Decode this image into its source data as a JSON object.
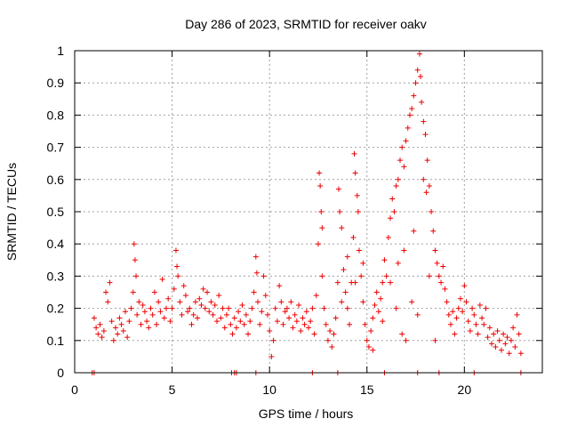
{
  "chart_data": {
    "type": "scatter",
    "title": "Day 286 of 2023, SRMTID for receiver oakv",
    "xlabel": "GPS time / hours",
    "ylabel": "SRMTID / TECUs",
    "xlim": [
      0,
      24
    ],
    "ylim": [
      0,
      1
    ],
    "grid": true,
    "marker": "plus",
    "colors": {
      "points": "#ee0000",
      "grid": "#a0a0a0",
      "axis": "#000000"
    },
    "x_ticks": [
      {
        "value": 0,
        "label": "0"
      },
      {
        "value": 5,
        "label": "5"
      },
      {
        "value": 10,
        "label": "10"
      },
      {
        "value": 15,
        "label": "15"
      },
      {
        "value": 20,
        "label": "20"
      }
    ],
    "y_ticks": [
      {
        "value": 0,
        "label": "0"
      },
      {
        "value": 0.1,
        "label": "0.1"
      },
      {
        "value": 0.2,
        "label": "0.2"
      },
      {
        "value": 0.3,
        "label": "0.3"
      },
      {
        "value": 0.4,
        "label": "0.4"
      },
      {
        "value": 0.5,
        "label": "0.5"
      },
      {
        "value": 0.6,
        "label": "0.6"
      },
      {
        "value": 0.7,
        "label": "0.7"
      },
      {
        "value": 0.8,
        "label": "0.8"
      },
      {
        "value": 0.9,
        "label": "0.9"
      },
      {
        "value": 1,
        "label": "1"
      }
    ],
    "series": [
      {
        "name": "SRMTID",
        "points": [
          [
            1.0,
            0.17
          ],
          [
            1.1,
            0.14
          ],
          [
            1.2,
            0.12
          ],
          [
            1.3,
            0.15
          ],
          [
            1.4,
            0.11
          ],
          [
            1.5,
            0.13
          ],
          [
            1.6,
            0.25
          ],
          [
            1.7,
            0.22
          ],
          [
            1.8,
            0.28
          ],
          [
            1.9,
            0.16
          ],
          [
            2.0,
            0.1
          ],
          [
            2.1,
            0.14
          ],
          [
            2.2,
            0.12
          ],
          [
            2.3,
            0.17
          ],
          [
            2.4,
            0.15
          ],
          [
            2.5,
            0.13
          ],
          [
            2.6,
            0.19
          ],
          [
            2.7,
            0.11
          ],
          [
            2.8,
            0.16
          ],
          [
            2.9,
            0.2
          ],
          [
            3.0,
            0.25
          ],
          [
            3.05,
            0.4
          ],
          [
            3.1,
            0.35
          ],
          [
            3.15,
            0.3
          ],
          [
            3.2,
            0.18
          ],
          [
            3.3,
            0.22
          ],
          [
            3.4,
            0.15
          ],
          [
            3.5,
            0.21
          ],
          [
            3.6,
            0.19
          ],
          [
            3.7,
            0.16
          ],
          [
            3.8,
            0.14
          ],
          [
            3.9,
            0.2
          ],
          [
            4.0,
            0.18
          ],
          [
            4.1,
            0.25
          ],
          [
            4.2,
            0.15
          ],
          [
            4.3,
            0.22
          ],
          [
            4.4,
            0.19
          ],
          [
            4.5,
            0.29
          ],
          [
            4.6,
            0.17
          ],
          [
            4.7,
            0.2
          ],
          [
            4.8,
            0.23
          ],
          [
            4.9,
            0.16
          ],
          [
            5.0,
            0.2
          ],
          [
            5.1,
            0.26
          ],
          [
            5.2,
            0.38
          ],
          [
            5.25,
            0.33
          ],
          [
            5.3,
            0.3
          ],
          [
            5.4,
            0.22
          ],
          [
            5.5,
            0.18
          ],
          [
            5.6,
            0.27
          ],
          [
            5.7,
            0.24
          ],
          [
            5.8,
            0.19
          ],
          [
            5.9,
            0.2
          ],
          [
            6.0,
            0.15
          ],
          [
            6.1,
            0.18
          ],
          [
            6.2,
            0.22
          ],
          [
            6.3,
            0.17
          ],
          [
            6.4,
            0.23
          ],
          [
            6.5,
            0.21
          ],
          [
            6.6,
            0.26
          ],
          [
            6.7,
            0.2
          ],
          [
            6.8,
            0.25
          ],
          [
            6.9,
            0.19
          ],
          [
            7.0,
            0.22
          ],
          [
            7.1,
            0.18
          ],
          [
            7.2,
            0.21
          ],
          [
            7.3,
            0.16
          ],
          [
            7.4,
            0.24
          ],
          [
            7.5,
            0.17
          ],
          [
            7.6,
            0.2
          ],
          [
            7.7,
            0.14
          ],
          [
            7.8,
            0.18
          ],
          [
            7.9,
            0.2
          ],
          [
            8.0,
            0.15
          ],
          [
            8.1,
            0.12
          ],
          [
            8.2,
            0.17
          ],
          [
            8.3,
            0.14
          ],
          [
            8.4,
            0.19
          ],
          [
            8.5,
            0.16
          ],
          [
            8.6,
            0.21
          ],
          [
            8.7,
            0.15
          ],
          [
            8.8,
            0.18
          ],
          [
            8.9,
            0.12
          ],
          [
            9.0,
            0.16
          ],
          [
            9.1,
            0.2
          ],
          [
            9.2,
            0.25
          ],
          [
            9.3,
            0.36
          ],
          [
            9.35,
            0.31
          ],
          [
            9.4,
            0.22
          ],
          [
            9.5,
            0.15
          ],
          [
            9.6,
            0.19
          ],
          [
            9.7,
            0.3
          ],
          [
            9.8,
            0.24
          ],
          [
            9.9,
            0.18
          ],
          [
            10.0,
            0.13
          ],
          [
            10.1,
            0.05
          ],
          [
            10.2,
            0.1
          ],
          [
            10.3,
            0.2
          ],
          [
            10.4,
            0.16
          ],
          [
            10.5,
            0.27
          ],
          [
            10.6,
            0.22
          ],
          [
            10.7,
            0.15
          ],
          [
            10.8,
            0.19
          ],
          [
            10.9,
            0.2
          ],
          [
            11.0,
            0.17
          ],
          [
            11.1,
            0.22
          ],
          [
            11.2,
            0.14
          ],
          [
            11.3,
            0.18
          ],
          [
            11.4,
            0.16
          ],
          [
            11.5,
            0.21
          ],
          [
            11.6,
            0.13
          ],
          [
            11.7,
            0.17
          ],
          [
            11.8,
            0.15
          ],
          [
            11.9,
            0.19
          ],
          [
            12.0,
            0.14
          ],
          [
            12.1,
            0.16
          ],
          [
            12.2,
            0.2
          ],
          [
            12.3,
            0.12
          ],
          [
            12.4,
            0.24
          ],
          [
            12.5,
            0.4
          ],
          [
            12.55,
            0.62
          ],
          [
            12.6,
            0.58
          ],
          [
            12.65,
            0.5
          ],
          [
            12.7,
            0.45
          ],
          [
            12.8,
            0.2
          ],
          [
            12.9,
            0.15
          ],
          [
            13.0,
            0.1
          ],
          [
            13.1,
            0.13
          ],
          [
            13.2,
            0.08
          ],
          [
            13.3,
            0.12
          ],
          [
            13.4,
            0.17
          ],
          [
            13.5,
            0.28
          ],
          [
            13.55,
            0.57
          ],
          [
            13.6,
            0.5
          ],
          [
            13.7,
            0.45
          ],
          [
            13.8,
            0.32
          ],
          [
            13.9,
            0.25
          ],
          [
            14.0,
            0.2
          ],
          [
            14.1,
            0.15
          ],
          [
            14.2,
            0.28
          ],
          [
            14.3,
            0.42
          ],
          [
            14.35,
            0.68
          ],
          [
            14.4,
            0.62
          ],
          [
            14.5,
            0.55
          ],
          [
            14.55,
            0.5
          ],
          [
            14.6,
            0.38
          ],
          [
            14.7,
            0.3
          ],
          [
            14.8,
            0.22
          ],
          [
            14.9,
            0.15
          ],
          [
            15.0,
            0.1
          ],
          [
            15.1,
            0.08
          ],
          [
            15.2,
            0.13
          ],
          [
            15.3,
            0.17
          ],
          [
            15.4,
            0.21
          ],
          [
            15.5,
            0.25
          ],
          [
            15.6,
            0.19
          ],
          [
            15.7,
            0.23
          ],
          [
            15.8,
            0.28
          ],
          [
            15.9,
            0.35
          ],
          [
            16.0,
            0.3
          ],
          [
            16.1,
            0.42
          ],
          [
            16.2,
            0.48
          ],
          [
            16.3,
            0.54
          ],
          [
            16.4,
            0.5
          ],
          [
            16.5,
            0.58
          ],
          [
            16.6,
            0.6
          ],
          [
            16.7,
            0.66
          ],
          [
            16.8,
            0.7
          ],
          [
            16.9,
            0.64
          ],
          [
            17.0,
            0.72
          ],
          [
            17.1,
            0.76
          ],
          [
            17.2,
            0.8
          ],
          [
            17.3,
            0.82
          ],
          [
            17.4,
            0.86
          ],
          [
            17.5,
            0.9
          ],
          [
            17.6,
            0.94
          ],
          [
            17.7,
            0.99
          ],
          [
            17.75,
            0.92
          ],
          [
            17.8,
            0.84
          ],
          [
            17.9,
            0.78
          ],
          [
            18.0,
            0.74
          ],
          [
            18.1,
            0.66
          ],
          [
            18.2,
            0.58
          ],
          [
            18.3,
            0.5
          ],
          [
            18.4,
            0.44
          ],
          [
            18.5,
            0.38
          ],
          [
            18.6,
            0.34
          ],
          [
            18.7,
            0.3
          ],
          [
            18.8,
            0.28
          ],
          [
            18.9,
            0.33
          ],
          [
            19.0,
            0.26
          ],
          [
            19.1,
            0.22
          ],
          [
            19.2,
            0.18
          ],
          [
            19.3,
            0.15
          ],
          [
            19.4,
            0.19
          ],
          [
            19.5,
            0.12
          ],
          [
            19.6,
            0.17
          ],
          [
            19.7,
            0.2
          ],
          [
            19.8,
            0.23
          ],
          [
            19.9,
            0.19
          ],
          [
            20.0,
            0.27
          ],
          [
            20.1,
            0.22
          ],
          [
            20.2,
            0.16
          ],
          [
            20.3,
            0.13
          ],
          [
            20.4,
            0.2
          ],
          [
            20.5,
            0.18
          ],
          [
            20.6,
            0.15
          ],
          [
            20.7,
            0.12
          ],
          [
            20.8,
            0.21
          ],
          [
            20.9,
            0.17
          ],
          [
            21.0,
            0.15
          ],
          [
            21.1,
            0.2
          ],
          [
            21.2,
            0.11
          ],
          [
            21.3,
            0.14
          ],
          [
            21.4,
            0.09
          ],
          [
            21.5,
            0.12
          ],
          [
            21.6,
            0.08
          ],
          [
            21.7,
            0.13
          ],
          [
            21.8,
            0.1
          ],
          [
            21.9,
            0.07
          ],
          [
            22.0,
            0.12
          ],
          [
            22.1,
            0.09
          ],
          [
            22.2,
            0.11
          ],
          [
            22.3,
            0.06
          ],
          [
            22.4,
            0.1
          ],
          [
            22.5,
            0.14
          ],
          [
            22.6,
            0.08
          ],
          [
            22.7,
            0.18
          ],
          [
            22.8,
            0.12
          ],
          [
            22.9,
            0.06
          ],
          [
            16.2,
            0.28
          ],
          [
            16.5,
            0.2
          ],
          [
            16.8,
            0.12
          ],
          [
            17.0,
            0.1
          ],
          [
            17.3,
            0.22
          ],
          [
            17.6,
            0.18
          ],
          [
            18.2,
            0.3
          ],
          [
            18.5,
            0.1
          ],
          [
            16.9,
            0.38
          ],
          [
            17.4,
            0.44
          ],
          [
            18.05,
            0.56
          ],
          [
            17.9,
            0.6
          ],
          [
            16.6,
            0.34
          ],
          [
            15.8,
            0.16
          ],
          [
            14.0,
            0.36
          ],
          [
            13.7,
            0.22
          ],
          [
            12.7,
            0.3
          ],
          [
            14.4,
            0.28
          ],
          [
            14.8,
            0.34
          ],
          [
            15.3,
            0.07
          ]
        ]
      },
      {
        "name": "baseline markers",
        "points": [
          [
            0.9,
            0
          ],
          [
            1.0,
            0
          ],
          [
            8.05,
            0
          ],
          [
            8.2,
            0
          ],
          [
            8.3,
            0
          ],
          [
            9.3,
            0
          ],
          [
            12.2,
            0
          ],
          [
            13.5,
            0
          ],
          [
            15.9,
            0
          ],
          [
            17.6,
            0
          ],
          [
            18.7,
            0
          ],
          [
            20.5,
            0
          ],
          [
            22.9,
            0
          ]
        ]
      }
    ]
  }
}
